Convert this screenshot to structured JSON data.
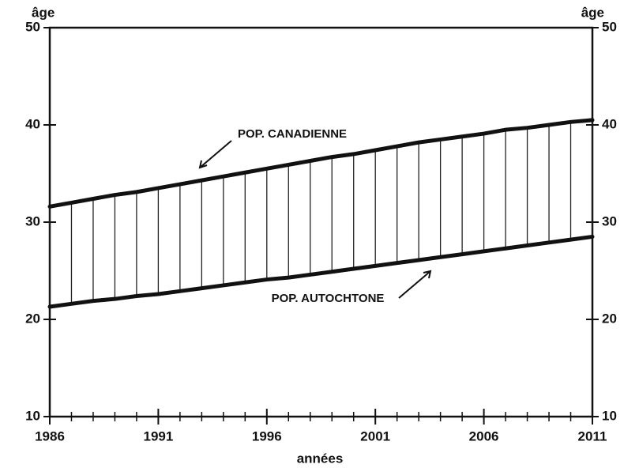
{
  "chart_data": {
    "type": "line",
    "ylabel": "âge",
    "y2label": "âge",
    "xlabel": "années",
    "x": [
      1986,
      1987,
      1988,
      1989,
      1990,
      1991,
      1992,
      1993,
      1994,
      1995,
      1996,
      1997,
      1998,
      1999,
      2000,
      2001,
      2002,
      2003,
      2004,
      2005,
      2006,
      2007,
      2008,
      2009,
      2010,
      2011
    ],
    "series": [
      {
        "name": "POP. CANADIENNE",
        "color": "#111111",
        "values": [
          31.6,
          32.0,
          32.4,
          32.8,
          33.1,
          33.5,
          33.9,
          34.3,
          34.7,
          35.1,
          35.5,
          35.9,
          36.3,
          36.7,
          37.0,
          37.4,
          37.8,
          38.2,
          38.5,
          38.8,
          39.1,
          39.5,
          39.7,
          40.0,
          40.3,
          40.5
        ]
      },
      {
        "name": "POP. AUTOCHTONE",
        "color": "#111111",
        "values": [
          21.3,
          21.6,
          21.9,
          22.1,
          22.4,
          22.6,
          22.9,
          23.2,
          23.5,
          23.8,
          24.1,
          24.3,
          24.6,
          24.9,
          25.2,
          25.5,
          25.8,
          26.1,
          26.4,
          26.7,
          27.0,
          27.3,
          27.6,
          27.9,
          28.2,
          28.5
        ]
      }
    ],
    "xlim": [
      1986,
      2011
    ],
    "xticks": [
      1986,
      1991,
      1996,
      2001,
      2006,
      2011
    ],
    "ylim": [
      10,
      50
    ],
    "yticks": [
      10,
      20,
      30,
      40,
      50
    ],
    "y2lim": [
      10,
      50
    ],
    "y2ticks": [
      10,
      20,
      30,
      40,
      50
    ],
    "fill_between": true
  }
}
